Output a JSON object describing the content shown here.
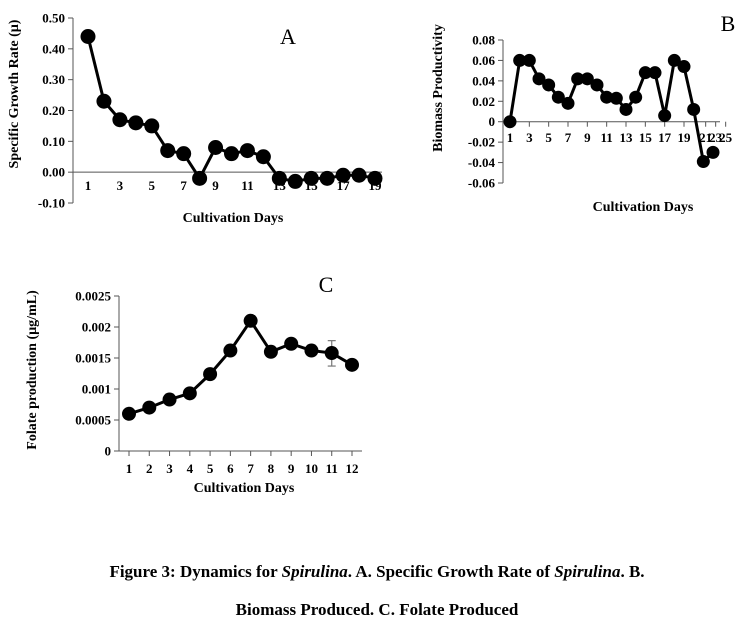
{
  "chart_data": [
    {
      "panel": "A",
      "type": "line",
      "ylabel": "Specific Growth Rate (µ)",
      "xlabel": "Cultivation Days",
      "ylim": [
        -0.1,
        0.5
      ],
      "yticks": [
        "0.50",
        "0.40",
        "0.30",
        "0.20",
        "0.10",
        "0.00",
        "-0.10"
      ],
      "ytick_values": [
        0.5,
        0.4,
        0.3,
        0.2,
        0.1,
        0.0,
        -0.1
      ],
      "xticks": [
        "1",
        "3",
        "5",
        "7",
        "9",
        "11",
        "13",
        "15",
        "17",
        "19"
      ],
      "xtick_values": [
        1,
        3,
        5,
        7,
        9,
        11,
        13,
        15,
        17,
        19
      ],
      "xlim": [
        1,
        19
      ],
      "x": [
        1,
        2,
        3,
        4,
        5,
        6,
        7,
        8,
        9,
        10,
        11,
        12,
        13,
        14,
        15,
        16,
        17,
        18,
        19
      ],
      "values": [
        0.44,
        0.23,
        0.17,
        0.16,
        0.15,
        0.07,
        0.06,
        -0.02,
        0.08,
        0.06,
        0.07,
        0.05,
        -0.02,
        -0.03,
        -0.02,
        -0.02,
        -0.01,
        -0.01,
        -0.02
      ],
      "grid": false
    },
    {
      "panel": "B",
      "type": "line",
      "ylabel": "Biomass  Productivity",
      "xlabel": "Cultivation Days",
      "ylim": [
        -0.06,
        0.08
      ],
      "yticks": [
        "0.08",
        "0.06",
        "0.04",
        "0.02",
        "0",
        "-0.02",
        "-0.04",
        "-0.06"
      ],
      "ytick_values": [
        0.08,
        0.06,
        0.04,
        0.02,
        0,
        -0.02,
        -0.04,
        -0.06
      ],
      "xticks": [
        "1",
        "3",
        "5",
        "7",
        "9",
        "11",
        "13",
        "15",
        "17",
        "19",
        "21",
        "23",
        "25"
      ],
      "xtick_values": [
        1,
        3,
        5,
        7,
        9,
        11,
        13,
        15,
        17,
        19,
        21,
        23,
        25
      ],
      "xlim": [
        1,
        22
      ],
      "x": [
        1,
        2,
        3,
        4,
        5,
        6,
        7,
        8,
        9,
        10,
        11,
        12,
        13,
        14,
        15,
        16,
        17,
        18,
        19,
        20,
        21,
        22
      ],
      "values": [
        0.0,
        0.06,
        0.06,
        0.042,
        0.036,
        0.024,
        0.018,
        0.042,
        0.042,
        0.036,
        0.024,
        0.023,
        0.012,
        0.024,
        0.048,
        0.048,
        0.006,
        0.06,
        0.054,
        0.012,
        -0.039,
        -0.03
      ],
      "grid": false
    },
    {
      "panel": "C",
      "type": "line",
      "ylabel": "Folate production (µg/mL)",
      "xlabel": "Cultivation Days",
      "ylim": [
        0,
        0.0025
      ],
      "yticks": [
        "0.0025",
        "0.002",
        "0.0015",
        "0.001",
        "0.0005",
        "0"
      ],
      "ytick_values": [
        0.0025,
        0.002,
        0.0015,
        0.001,
        0.0005,
        0
      ],
      "xticks": [
        "1",
        "2",
        "3",
        "4",
        "5",
        "6",
        "7",
        "8",
        "9",
        "10",
        "11",
        "12"
      ],
      "xtick_values": [
        1,
        2,
        3,
        4,
        5,
        6,
        7,
        8,
        9,
        10,
        11,
        12
      ],
      "xlim": [
        1,
        12
      ],
      "x": [
        1,
        2,
        3,
        4,
        5,
        6,
        7,
        8,
        9,
        10,
        11,
        12
      ],
      "values": [
        0.0006,
        0.0007,
        0.00083,
        0.00093,
        0.00124,
        0.00162,
        0.0021,
        0.0016,
        0.00173,
        0.00162,
        0.00158,
        0.00139
      ],
      "error_bars": [
        {
          "x": 11,
          "low": 0.00137,
          "high": 0.00178
        }
      ],
      "grid": false
    }
  ],
  "caption": {
    "line1_parts": [
      "Figure 3: Dynamics for ",
      "Spirulina",
      ". A. Specific Growth Rate of ",
      "Spirulina",
      ". B."
    ],
    "line2": "Biomass Produced. C. Folate Produced"
  }
}
